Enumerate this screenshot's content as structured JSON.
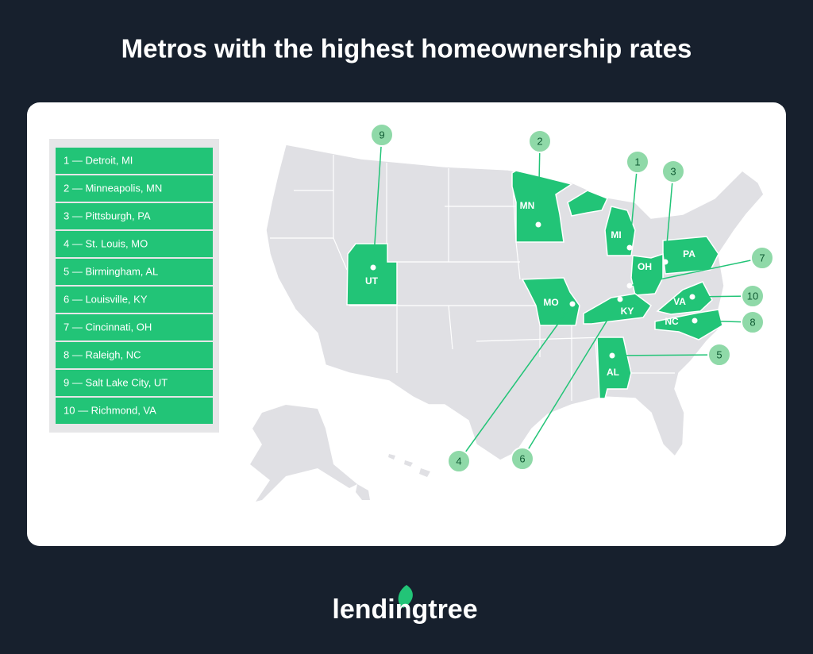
{
  "header": {
    "title": "Metros with the highest homeownership rates"
  },
  "legend": {
    "items": [
      "1 — Detroit, MI",
      "2 — Minneapolis, MN",
      "3 — Pittsburgh, PA",
      "4 — St. Louis, MO",
      "5 — Birmingham, AL",
      "6 — Louisville, KY",
      "7 — Cincinnati, OH",
      "8 — Raleigh, NC",
      "9 — Salt Lake City, UT",
      "10 — Richmond, VA"
    ]
  },
  "map": {
    "states": [
      "MN",
      "MI",
      "PA",
      "OH",
      "MO",
      "KY",
      "VA",
      "NC",
      "AL",
      "UT"
    ],
    "callouts": [
      "1",
      "2",
      "3",
      "4",
      "5",
      "6",
      "7",
      "8",
      "9",
      "10"
    ]
  },
  "footer": {
    "logo": "lendingtree"
  }
}
